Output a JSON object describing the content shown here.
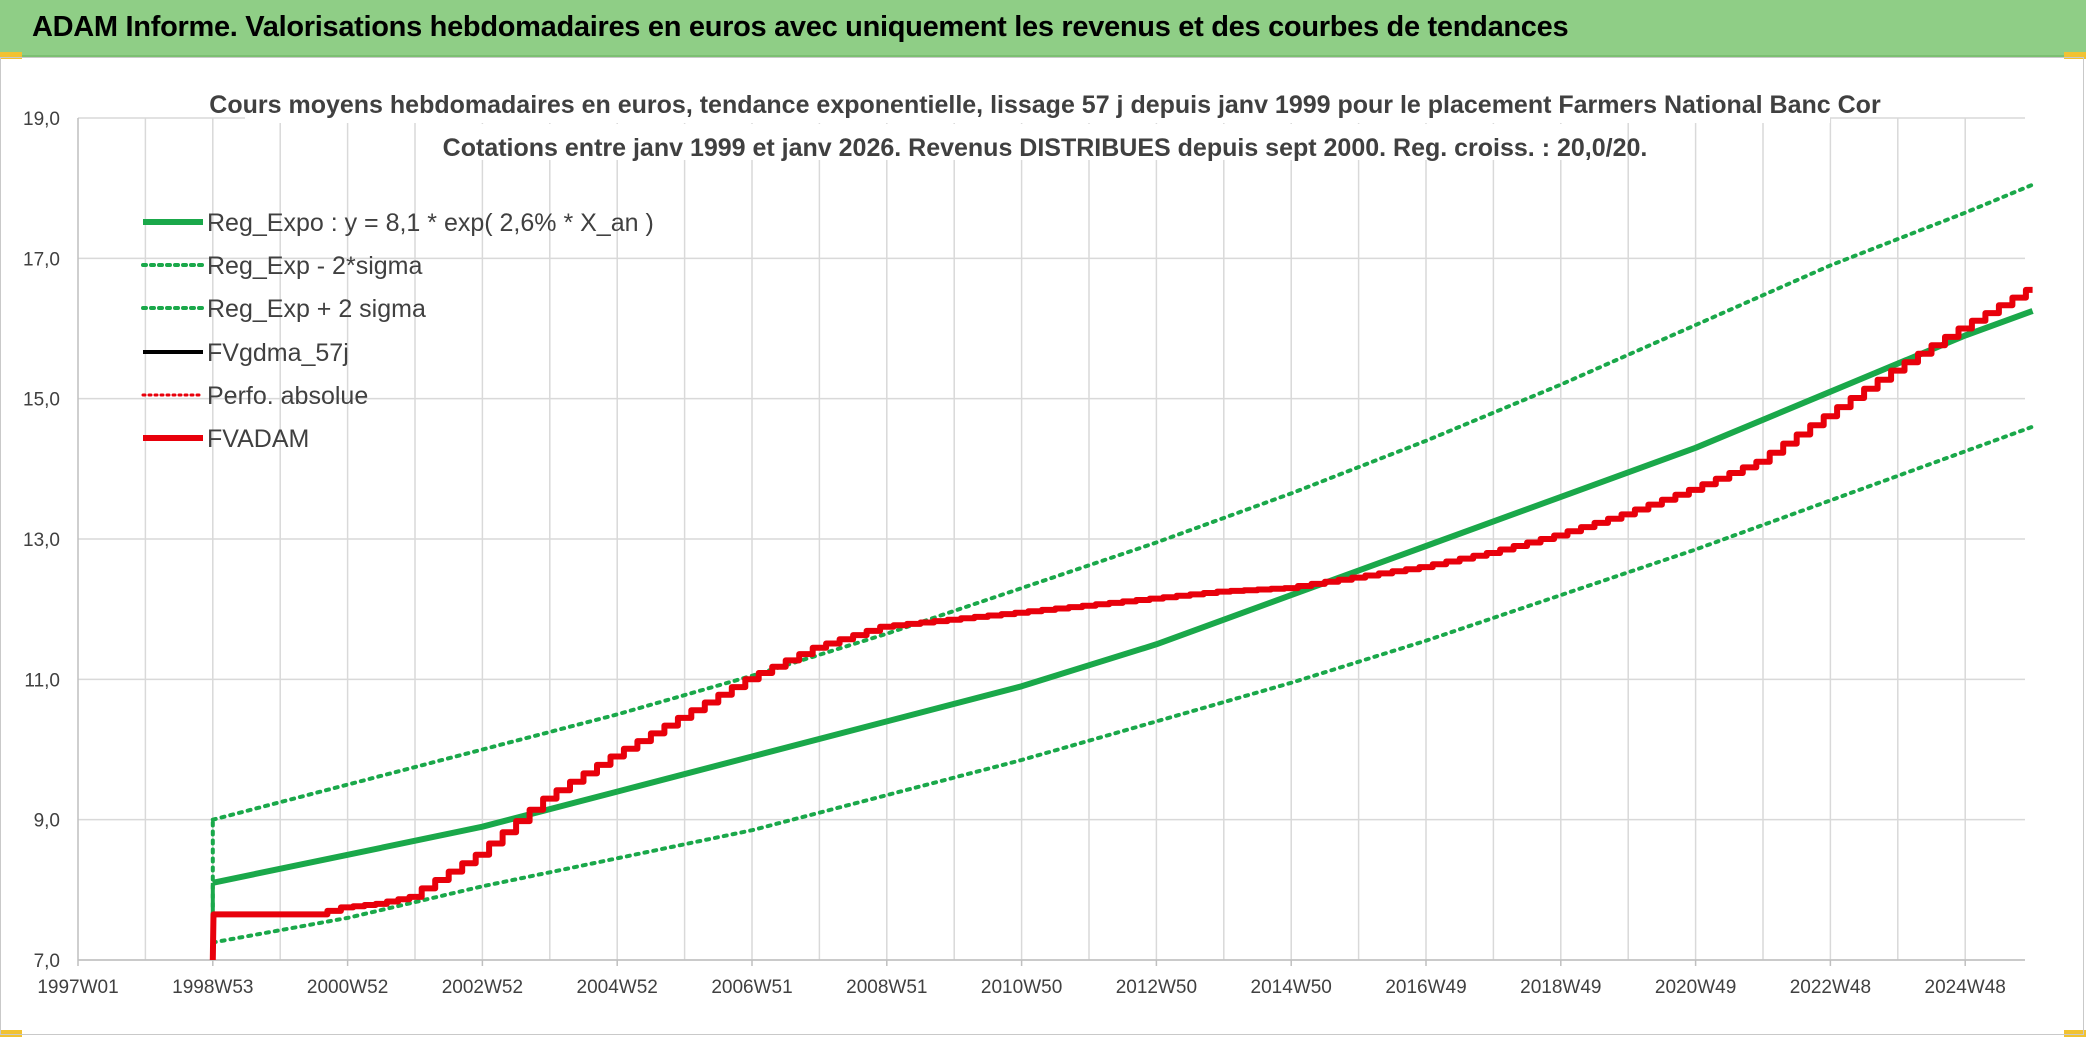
{
  "header": {
    "title": "ADAM Informe. Valorisations hebdomadaires en euros avec uniquement les revenus et des courbes de tendances"
  },
  "colors": {
    "title_bar": "#8fce86",
    "green": "#1aa84a",
    "red": "#e8000b",
    "black": "#000000",
    "grid": "#d9d9d9"
  },
  "chart_data": {
    "type": "line",
    "title": "Cours moyens hebdomadaires en euros, tendance exponentielle, lissage 57 j depuis janv 1999 pour le placement Farmers National Banc Cor",
    "subtitle": "Cotations entre janv 1999 et janv 2026. Revenus DISTRIBUES depuis sept 2000. Reg. croiss. : 20,0/20.",
    "xlabel": "",
    "ylabel": "",
    "x_ticks": [
      "1997W01",
      "1998W53",
      "2000W52",
      "2002W52",
      "2004W52",
      "2006W51",
      "2008W51",
      "2010W50",
      "2012W50",
      "2014W50",
      "2016W49",
      "2018W49",
      "2020W49",
      "2022W48",
      "2024W48"
    ],
    "xlim": [
      1997.0,
      2026.0
    ],
    "y_ticks": [
      "7,0",
      "9,0",
      "11,0",
      "13,0",
      "15,0",
      "17,0",
      "19,0"
    ],
    "ylim": [
      7.0,
      19.0
    ],
    "grid": true,
    "legend_position": "top-left",
    "series": [
      {
        "name": "Reg_Expo : y = 8,1 * exp( 2,6% *  X_an )",
        "style": "solid-green",
        "x": [
          1999.0,
          2001.0,
          2003.0,
          2005.0,
          2007.0,
          2009.0,
          2011.0,
          2013.0,
          2015.0,
          2017.0,
          2019.0,
          2021.0,
          2023.0,
          2025.0,
          2026.0
        ],
        "values": [
          8.1,
          8.5,
          8.9,
          9.4,
          9.9,
          10.4,
          10.9,
          11.5,
          12.2,
          12.9,
          13.6,
          14.3,
          15.1,
          15.9,
          16.25
        ]
      },
      {
        "name": "Reg_Exp - 2*sigma",
        "style": "dotted-green",
        "x": [
          1999.0,
          2001.0,
          2003.0,
          2005.0,
          2007.0,
          2009.0,
          2011.0,
          2013.0,
          2015.0,
          2017.0,
          2019.0,
          2021.0,
          2023.0,
          2025.0,
          2026.0
        ],
        "values": [
          7.25,
          7.6,
          8.05,
          8.45,
          8.85,
          9.35,
          9.85,
          10.4,
          10.95,
          11.55,
          12.2,
          12.85,
          13.55,
          14.25,
          14.6
        ]
      },
      {
        "name": "Reg_Exp + 2 sigma",
        "style": "dotted-green",
        "x": [
          1999.0,
          2001.0,
          2003.0,
          2005.0,
          2007.0,
          2009.0,
          2011.0,
          2013.0,
          2015.0,
          2017.0,
          2019.0,
          2021.0,
          2023.0,
          2025.0,
          2026.0
        ],
        "values": [
          9.0,
          9.5,
          10.0,
          10.5,
          11.05,
          11.65,
          12.3,
          12.95,
          13.65,
          14.4,
          15.2,
          16.05,
          16.9,
          17.65,
          18.05
        ]
      },
      {
        "name": "FVgdma_57j",
        "style": "solid-black",
        "x": [],
        "values": []
      },
      {
        "name": "Perfo. absolue",
        "style": "dotted-red",
        "x": [],
        "values": []
      },
      {
        "name": "FVADAM",
        "style": "solid-red",
        "x": [
          1999.0,
          1999.01,
          2000.6,
          2001.0,
          2001.5,
          2002.0,
          2003.0,
          2004.0,
          2005.0,
          2006.0,
          2007.0,
          2008.0,
          2009.0,
          2010.0,
          2011.0,
          2012.0,
          2013.0,
          2014.0,
          2015.0,
          2016.0,
          2017.0,
          2018.0,
          2019.0,
          2020.0,
          2021.0,
          2022.0,
          2023.0,
          2024.0,
          2025.0,
          2026.0
        ],
        "values": [
          7.0,
          7.65,
          7.65,
          7.75,
          7.8,
          7.9,
          8.5,
          9.3,
          9.9,
          10.45,
          11.0,
          11.45,
          11.75,
          11.85,
          11.95,
          12.05,
          12.15,
          12.25,
          12.3,
          12.45,
          12.6,
          12.8,
          13.05,
          13.35,
          13.7,
          14.1,
          14.75,
          15.4,
          16.0,
          16.55
        ]
      }
    ]
  }
}
